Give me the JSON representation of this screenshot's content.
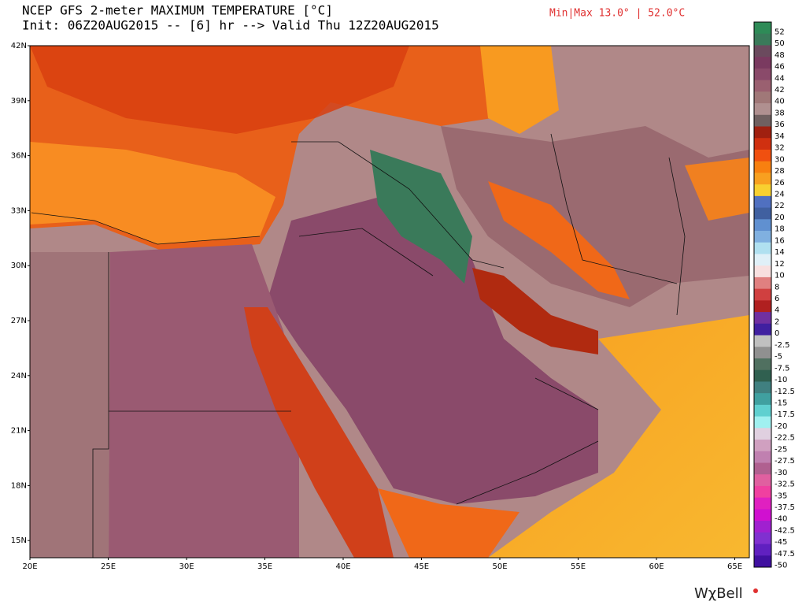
{
  "header": {
    "title": "NCEP GFS 2-meter MAXIMUM TEMPERATURE [°C]",
    "subtitle": "Init: 06Z20AUG2015 -- [6] hr --> Valid Thu 12Z20AUG2015",
    "minmax": "Min|Max 13.0° | 52.0°C"
  },
  "map": {
    "lat_labels": [
      "42N",
      "39N",
      "36N",
      "33N",
      "30N",
      "27N",
      "24N",
      "21N",
      "18N",
      "15N"
    ],
    "lon_labels": [
      "20E",
      "25E",
      "30E",
      "35E",
      "40E",
      "45E",
      "50E",
      "55E",
      "60E",
      "65E"
    ]
  },
  "colorbar": {
    "ticks": [
      52,
      50,
      48,
      46,
      44,
      42,
      40,
      38,
      36,
      34,
      32,
      30,
      28,
      26,
      24,
      22,
      20,
      18,
      16,
      14,
      12,
      10,
      8,
      6,
      4,
      2,
      0,
      -2.5,
      -5,
      -7.5,
      -10,
      -12.5,
      -15,
      -17.5,
      -20,
      -22.5,
      -25,
      -27.5,
      -30,
      -32.5,
      -35,
      -37.5,
      -40,
      -42.5,
      -45,
      -47.5,
      -50
    ],
    "colors": [
      "#2e8b57",
      "#3a7a5a",
      "#6b4a5e",
      "#7a3a60",
      "#8a4a6a",
      "#9a6070",
      "#a07878",
      "#b09090",
      "#706060",
      "#a02010",
      "#d03010",
      "#f05010",
      "#f88010",
      "#f8a020",
      "#f8d030",
      "#5070c0",
      "#4060a0",
      "#6090d0",
      "#80b0e0",
      "#b0e0f0",
      "#e0f0f8",
      "#f8e0e0",
      "#e08080",
      "#d04040",
      "#b02020",
      "#7030a0",
      "#4020a0",
      "#c0c0c0",
      "#909090",
      "#507060",
      "#306050",
      "#408080",
      "#40a0a0",
      "#60d0d0",
      "#a0f0f0",
      "#e0d0e0",
      "#d0a0c0",
      "#c080b0",
      "#b06090",
      "#e060a0",
      "#f040a0",
      "#e020c0",
      "#d010d0",
      "#a020d0",
      "#8030d0",
      "#6020c0",
      "#4010a0"
    ]
  },
  "logo": "WχBell"
}
